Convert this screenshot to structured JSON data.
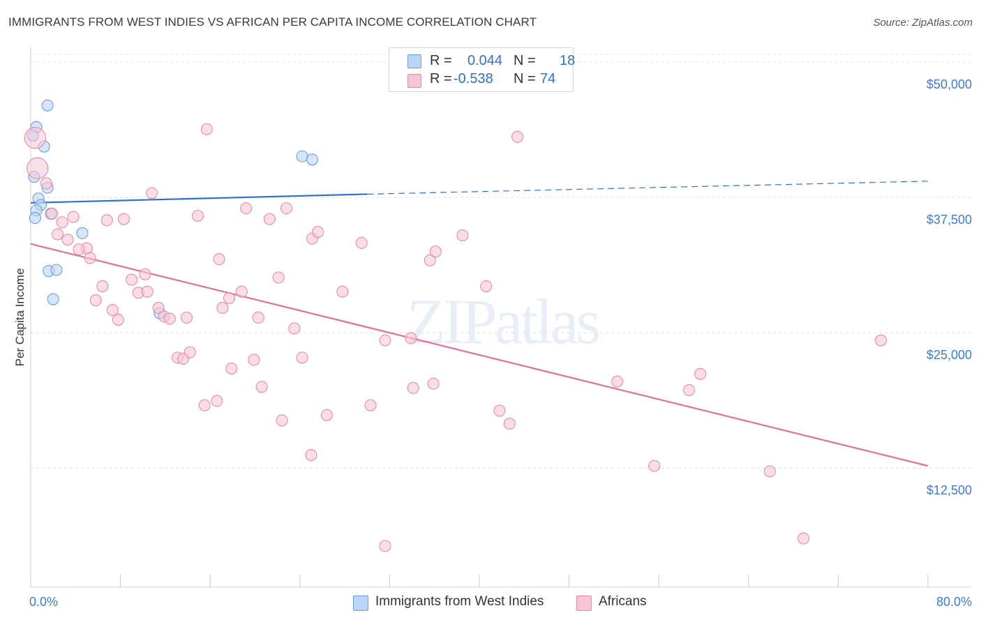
{
  "header": {
    "title": "IMMIGRANTS FROM WEST INDIES VS AFRICAN PER CAPITA INCOME CORRELATION CHART",
    "source": "Source: ZipAtlas.com"
  },
  "legend": {
    "rows": [
      {
        "r_label": "R =",
        "r_value": "0.044",
        "n_label": "N =",
        "n_value": "18"
      },
      {
        "r_label": "R =",
        "r_value": "-0.538",
        "n_label": "N =",
        "n_value": "74"
      }
    ]
  },
  "colors": {
    "blue_fill": "#bcd4f5",
    "blue_stroke": "#6b9de0",
    "blue_line": "#2f6fd0",
    "pink_fill": "#f7c6d5",
    "pink_stroke": "#e58aa8",
    "pink_line": "#e0709a",
    "tick_label": "#3d7ad6"
  },
  "chart_data": {
    "type": "scatter",
    "ylabel": "Per Capita Income",
    "xlim": [
      0,
      80
    ],
    "ylim": [
      1500,
      52000
    ],
    "x_tick_labels": [
      "0.0%",
      "80.0%"
    ],
    "y_ticks": [
      {
        "value": 12500,
        "label": "$12,500"
      },
      {
        "value": 25000,
        "label": "$25,000"
      },
      {
        "value": 37500,
        "label": "$37,500"
      },
      {
        "value": 50000,
        "label": "$50,000"
      }
    ],
    "watermark": "ZIPatlas",
    "series": [
      {
        "name": "Immigrants from West Indies",
        "color_key": "blue",
        "points": [
          [
            1.5,
            46000
          ],
          [
            0.5,
            44000
          ],
          [
            0.2,
            43200
          ],
          [
            1.2,
            42200
          ],
          [
            0.3,
            39400
          ],
          [
            1.5,
            38400
          ],
          [
            0.7,
            37400
          ],
          [
            0.9,
            36800
          ],
          [
            0.5,
            36300
          ],
          [
            1.8,
            36000
          ],
          [
            0.4,
            35600
          ],
          [
            4.6,
            34200
          ],
          [
            1.6,
            30700
          ],
          [
            2.3,
            30800
          ],
          [
            2.0,
            28100
          ],
          [
            11.5,
            26800
          ],
          [
            24.2,
            41300
          ],
          [
            25.1,
            41000
          ]
        ],
        "trend": {
          "x0": 0,
          "y0": 37000,
          "x1": 30,
          "y1": 37800,
          "dash_to_x": 80,
          "dash_to_y": 39000
        }
      },
      {
        "name": "Africans",
        "color_key": "pink",
        "points": [
          [
            0.4,
            43000
          ],
          [
            0.6,
            40200
          ],
          [
            1.4,
            38800
          ],
          [
            1.9,
            36000
          ],
          [
            2.8,
            35200
          ],
          [
            3.8,
            35700
          ],
          [
            2.4,
            34100
          ],
          [
            3.3,
            33600
          ],
          [
            5.0,
            32800
          ],
          [
            4.3,
            32700
          ],
          [
            5.3,
            31900
          ],
          [
            6.8,
            35400
          ],
          [
            8.3,
            35500
          ],
          [
            9.0,
            29900
          ],
          [
            6.4,
            29300
          ],
          [
            9.6,
            28700
          ],
          [
            10.2,
            30400
          ],
          [
            10.4,
            28800
          ],
          [
            5.8,
            28000
          ],
          [
            7.3,
            27100
          ],
          [
            7.8,
            26200
          ],
          [
            11.4,
            27300
          ],
          [
            11.9,
            26500
          ],
          [
            12.4,
            26300
          ],
          [
            13.9,
            26400
          ],
          [
            10.8,
            37900
          ],
          [
            14.9,
            35800
          ],
          [
            15.7,
            43800
          ],
          [
            16.8,
            31800
          ],
          [
            17.1,
            27300
          ],
          [
            17.7,
            28200
          ],
          [
            18.8,
            28800
          ],
          [
            19.2,
            36500
          ],
          [
            20.3,
            26400
          ],
          [
            21.3,
            35500
          ],
          [
            22.1,
            30100
          ],
          [
            22.8,
            36500
          ],
          [
            23.5,
            25400
          ],
          [
            25.1,
            33700
          ],
          [
            25.6,
            34300
          ],
          [
            27.8,
            28800
          ],
          [
            29.5,
            33300
          ],
          [
            31.6,
            24300
          ],
          [
            33.9,
            24500
          ],
          [
            35.6,
            31700
          ],
          [
            36.1,
            32500
          ],
          [
            38.5,
            34000
          ],
          [
            40.6,
            29300
          ],
          [
            43.4,
            43100
          ],
          [
            13.1,
            22700
          ],
          [
            13.6,
            22600
          ],
          [
            14.2,
            23200
          ],
          [
            15.5,
            18300
          ],
          [
            16.6,
            18700
          ],
          [
            17.9,
            21700
          ],
          [
            19.9,
            22500
          ],
          [
            20.6,
            20000
          ],
          [
            22.4,
            16900
          ],
          [
            24.2,
            22700
          ],
          [
            26.4,
            17400
          ],
          [
            25.0,
            13700
          ],
          [
            30.3,
            18300
          ],
          [
            31.6,
            5300
          ],
          [
            34.1,
            19900
          ],
          [
            35.9,
            20300
          ],
          [
            41.8,
            17800
          ],
          [
            42.7,
            16600
          ],
          [
            52.3,
            20500
          ],
          [
            55.6,
            12700
          ],
          [
            58.7,
            19700
          ],
          [
            59.7,
            21200
          ],
          [
            65.9,
            12200
          ],
          [
            68.9,
            6000
          ],
          [
            75.8,
            24300
          ]
        ],
        "trend": {
          "x0": 0,
          "y0": 33200,
          "x1": 80,
          "y1": 12700
        }
      }
    ]
  }
}
